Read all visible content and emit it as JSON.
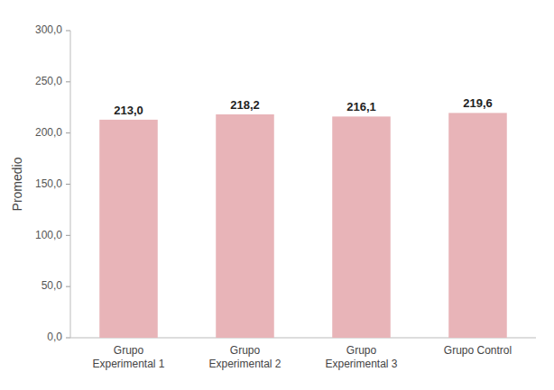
{
  "chart_data": {
    "type": "bar",
    "categories": [
      "Grupo\nExperimental 1",
      "Grupo\nExperimental 2",
      "Grupo\nExperimental 3",
      "Grupo Control"
    ],
    "values": [
      213.0,
      218.2,
      216.1,
      219.6
    ],
    "value_labels": [
      "213,0",
      "218,2",
      "216,1",
      "219,6"
    ],
    "data_labels": true,
    "color": "#e8b4b8",
    "ylabel": "Promedio",
    "ylim": [
      0,
      300
    ],
    "yticks": [
      {
        "value": 0,
        "label": "0,0"
      },
      {
        "value": 50,
        "label": "50,0"
      },
      {
        "value": 100,
        "label": "100,0"
      },
      {
        "value": 150,
        "label": "150,0"
      },
      {
        "value": 200,
        "label": "200,0"
      },
      {
        "value": 250,
        "label": "250,0"
      },
      {
        "value": 300,
        "label": "300,0"
      }
    ],
    "grid": false
  }
}
